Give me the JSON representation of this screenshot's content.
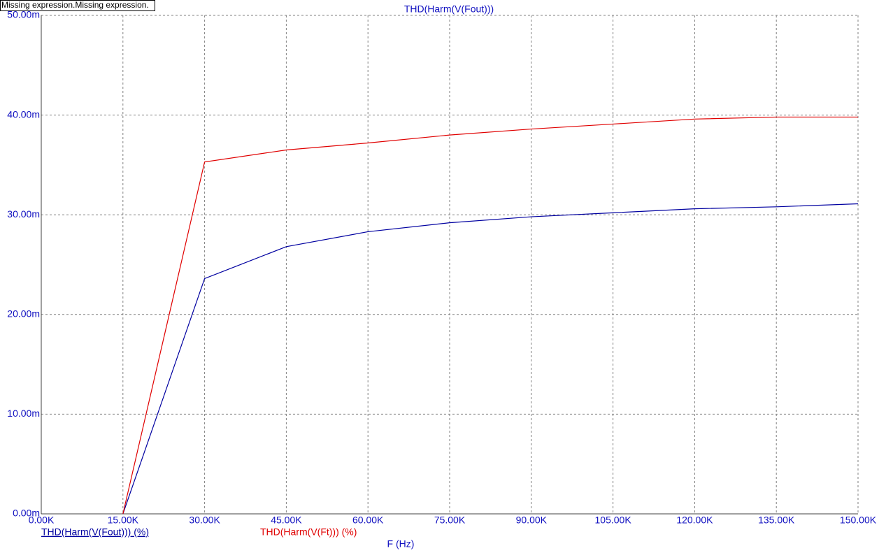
{
  "header": {
    "note": "Missing expression.Missing expression."
  },
  "chart_data": {
    "type": "line",
    "title": "THD(Harm(V(Fout)))",
    "x_label": "F (Hz)",
    "x": [
      15,
      30,
      45,
      60,
      75,
      90,
      105,
      120,
      135,
      150
    ],
    "series": [
      {
        "name": "THD(Harm(V(Fout))) (%)",
        "color": "#0000a0",
        "values": [
          0,
          23.6,
          26.8,
          28.3,
          29.2,
          29.8,
          30.2,
          30.6,
          30.8,
          31.1
        ]
      },
      {
        "name": "THD(Harm(V(Ft))) (%)",
        "color": "#e00000",
        "values": [
          0,
          35.3,
          36.5,
          37.2,
          38.0,
          38.6,
          39.1,
          39.6,
          39.8,
          39.8
        ]
      }
    ],
    "xlim": [
      0,
      150
    ],
    "xticks": [
      {
        "value": 0,
        "label": "0.00K"
      },
      {
        "value": 15,
        "label": "15.00K"
      },
      {
        "value": 30,
        "label": "30.00K"
      },
      {
        "value": 45,
        "label": "45.00K"
      },
      {
        "value": 60,
        "label": "60.00K"
      },
      {
        "value": 75,
        "label": "75.00K"
      },
      {
        "value": 90,
        "label": "90.00K"
      },
      {
        "value": 105,
        "label": "105.00K"
      },
      {
        "value": 120,
        "label": "120.00K"
      },
      {
        "value": 135,
        "label": "135.00K"
      },
      {
        "value": 150,
        "label": "150.00K"
      }
    ],
    "ylim": [
      0,
      50
    ],
    "yticks": [
      {
        "value": 0,
        "label": "0.00m"
      },
      {
        "value": 10,
        "label": "10.00m"
      },
      {
        "value": 20,
        "label": "20.00m"
      },
      {
        "value": 30,
        "label": "30.00m"
      },
      {
        "value": 40,
        "label": "40.00m"
      },
      {
        "value": 50,
        "label": "50.00m"
      }
    ],
    "grid": true
  }
}
